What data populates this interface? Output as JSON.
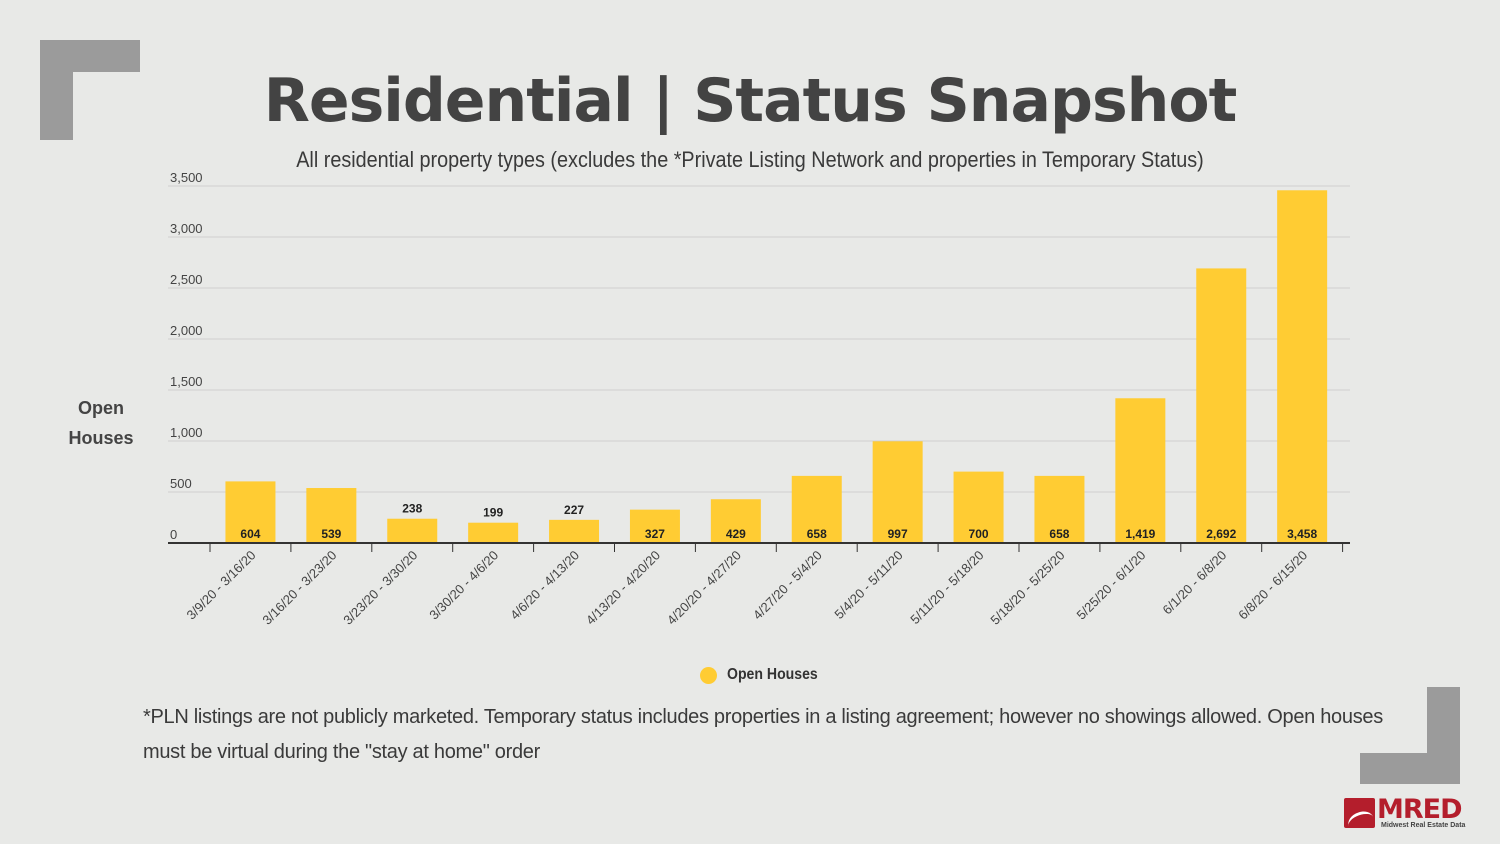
{
  "title": "Residential | Status Snapshot",
  "subtitle": "All residential property types (excludes the *Private Listing Network and properties in Temporary Status)",
  "footnote": "*PLN listings are not publicly marketed. Temporary status includes properties in a listing agreement; however no showings allowed. Open houses must be virtual during the \"stay at home\" order",
  "logo": {
    "word": "MRED",
    "tagline": "Midwest Real Estate Data"
  },
  "colors": {
    "bar": "#ffcc33",
    "axis": "#333333",
    "grid": "#cfcfcf",
    "corner": "#9b9b9b",
    "brand": "#b41e2c"
  },
  "chart_data": {
    "type": "bar",
    "ylabel": "Open Houses",
    "ylim": [
      0,
      3500
    ],
    "yticks": [
      {
        "value": 0,
        "label": "0"
      },
      {
        "value": 500,
        "label": "500"
      },
      {
        "value": 1000,
        "label": "1,000"
      },
      {
        "value": 1500,
        "label": "1,500"
      },
      {
        "value": 2000,
        "label": "2,000"
      },
      {
        "value": 2500,
        "label": "2,500"
      },
      {
        "value": 3000,
        "label": "3,000"
      },
      {
        "value": 3500,
        "label": "3,500"
      }
    ],
    "grid": true,
    "legend": {
      "position": "bottom-center",
      "entries": [
        "Open Houses"
      ]
    },
    "categories": [
      "3/9/20 - 3/16/20",
      "3/16/20 - 3/23/20",
      "3/23/20 - 3/30/20",
      "3/30/20 - 4/6/20",
      "4/6/20 - 4/13/20",
      "4/13/20 - 4/20/20",
      "4/20/20 - 4/27/20",
      "4/27/20 - 5/4/20",
      "5/4/20 - 5/11/20",
      "5/11/20 - 5/18/20",
      "5/18/20 - 5/25/20",
      "5/25/20 - 6/1/20",
      "6/1/20 - 6/8/20",
      "6/8/20 - 6/15/20"
    ],
    "series": [
      {
        "name": "Open Houses",
        "values": [
          604,
          539,
          238,
          199,
          227,
          327,
          429,
          658,
          997,
          700,
          658,
          1419,
          2692,
          3458
        ],
        "labels": [
          "604",
          "539",
          "238",
          "199",
          "227",
          "327",
          "429",
          "658",
          "997",
          "700",
          "658",
          "1,419",
          "2,692",
          "3,458"
        ]
      }
    ]
  }
}
